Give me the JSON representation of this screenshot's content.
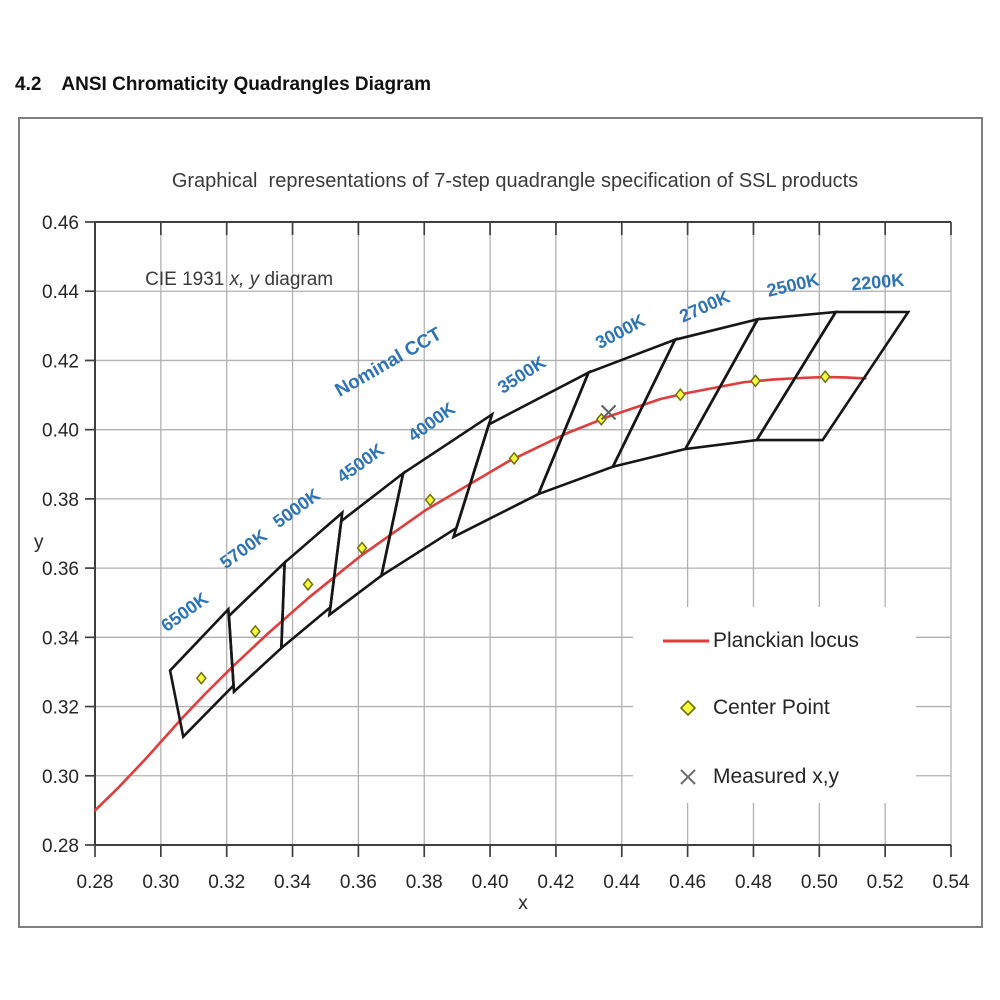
{
  "page": {
    "heading_number": "4.2",
    "heading_text": "ANSI Chromaticity Quadrangles Diagram"
  },
  "figure": {
    "title": "Graphical  representations of 7-step quadrangle specification of SSL products",
    "cie_prefix": "CIE 1931 ",
    "cie_italic": "x, y",
    "cie_suffix": " diagram"
  },
  "chart_data": {
    "type": "line",
    "title": "Graphical  representations of 7-step quadrangle specification of SSL products",
    "annotation": "CIE 1931 x, y diagram",
    "xlabel": "x",
    "ylabel": "y",
    "xlim": [
      0.28,
      0.54
    ],
    "ylim": [
      0.28,
      0.46
    ],
    "grid": true,
    "xtick_labels": [
      "0.28",
      "0.30",
      "0.32",
      "0.34",
      "0.36",
      "0.38",
      "0.40",
      "0.42",
      "0.44",
      "0.46",
      "0.48",
      "0.50",
      "0.52",
      "0.54"
    ],
    "ytick_labels": [
      "0.46",
      "0.44",
      "0.42",
      "0.40",
      "0.38",
      "0.36",
      "0.34",
      "0.32",
      "0.30",
      "0.28"
    ],
    "colors": {
      "grid": "#b0b0b0",
      "axis": "#3f3f3f",
      "tick_text": "#262626",
      "quadrangle": "#161616",
      "locus": "#e23b3b",
      "cct_text": "#2e74b5",
      "center_fill": "#f7fb3c",
      "center_stroke": "#6f7008",
      "measured": "#616161"
    },
    "nominal_cct_label": {
      "text": "Nominal CCT",
      "x": 0.37,
      "y": 0.418,
      "angle": -30
    },
    "quadrangles": [
      {
        "cct": "6500K",
        "label_x": 0.3083,
        "label_y": 0.3459,
        "label_angle": -36,
        "vertices": [
          [
            0.3028,
            0.3304
          ],
          [
            0.3205,
            0.3481
          ],
          [
            0.3221,
            0.3261
          ],
          [
            0.3068,
            0.3113
          ]
        ]
      },
      {
        "cct": "5700K",
        "label_x": 0.3262,
        "label_y": 0.3641,
        "label_angle": -36,
        "vertices": [
          [
            0.3207,
            0.3462
          ],
          [
            0.3376,
            0.3616
          ],
          [
            0.3366,
            0.3369
          ],
          [
            0.3222,
            0.3243
          ]
        ]
      },
      {
        "cct": "5000K",
        "label_x": 0.3423,
        "label_y": 0.3759,
        "label_angle": -36,
        "vertices": [
          [
            0.3376,
            0.3616
          ],
          [
            0.3551,
            0.376
          ],
          [
            0.3515,
            0.3487
          ],
          [
            0.3366,
            0.3369
          ]
        ]
      },
      {
        "cct": "4500K",
        "label_x": 0.3617,
        "label_y": 0.3889,
        "label_angle": -36,
        "vertices": [
          [
            0.3548,
            0.3736
          ],
          [
            0.3736,
            0.3874
          ],
          [
            0.367,
            0.3578
          ],
          [
            0.3512,
            0.3465
          ]
        ]
      },
      {
        "cct": "4000K",
        "label_x": 0.3833,
        "label_y": 0.4008,
        "label_angle": -36,
        "vertices": [
          [
            0.3736,
            0.3874
          ],
          [
            0.4006,
            0.4044
          ],
          [
            0.3898,
            0.3716
          ],
          [
            0.367,
            0.3578
          ]
        ]
      },
      {
        "cct": "3500K",
        "label_x": 0.4106,
        "label_y": 0.4144,
        "label_angle": -33,
        "vertices": [
          [
            0.3996,
            0.4015
          ],
          [
            0.4299,
            0.4165
          ],
          [
            0.4147,
            0.3814
          ],
          [
            0.3889,
            0.369
          ]
        ]
      },
      {
        "cct": "3000K",
        "label_x": 0.4404,
        "label_y": 0.4268,
        "label_angle": -28,
        "vertices": [
          [
            0.4299,
            0.4165
          ],
          [
            0.4562,
            0.426
          ],
          [
            0.4373,
            0.3893
          ],
          [
            0.4147,
            0.3814
          ]
        ]
      },
      {
        "cct": "2700K",
        "label_x": 0.4659,
        "label_y": 0.434,
        "label_angle": -24,
        "vertices": [
          [
            0.4562,
            0.426
          ],
          [
            0.4813,
            0.4319
          ],
          [
            0.4593,
            0.3944
          ],
          [
            0.4373,
            0.3893
          ]
        ]
      },
      {
        "cct": "2500K",
        "label_x": 0.4924,
        "label_y": 0.4401,
        "label_angle": -13,
        "vertices": [
          [
            0.4813,
            0.4319
          ],
          [
            0.505,
            0.434
          ],
          [
            0.481,
            0.397
          ],
          [
            0.4593,
            0.3944
          ]
        ]
      },
      {
        "cct": "2200K",
        "label_x": 0.5179,
        "label_y": 0.4409,
        "label_angle": -5,
        "vertices": [
          [
            0.505,
            0.434
          ],
          [
            0.527,
            0.434
          ],
          [
            0.501,
            0.397
          ],
          [
            0.481,
            0.397
          ]
        ]
      }
    ],
    "center_points": [
      {
        "cct": "6500K",
        "x": 0.3123,
        "y": 0.3282
      },
      {
        "cct": "5700K",
        "x": 0.3287,
        "y": 0.3417
      },
      {
        "cct": "5000K",
        "x": 0.3447,
        "y": 0.3553
      },
      {
        "cct": "4500K",
        "x": 0.3611,
        "y": 0.3658
      },
      {
        "cct": "4000K",
        "x": 0.3818,
        "y": 0.3797
      },
      {
        "cct": "3500K",
        "x": 0.4073,
        "y": 0.3917
      },
      {
        "cct": "3000K",
        "x": 0.4338,
        "y": 0.403
      },
      {
        "cct": "2700K",
        "x": 0.4578,
        "y": 0.4101
      },
      {
        "cct": "2500K",
        "x": 0.4806,
        "y": 0.4141
      },
      {
        "cct": "2200K",
        "x": 0.5018,
        "y": 0.4153
      }
    ],
    "measured_points": [
      {
        "x": 0.436,
        "y": 0.405
      }
    ],
    "planckian_locus": [
      [
        0.28,
        0.29
      ],
      [
        0.287,
        0.2965
      ],
      [
        0.295,
        0.3045
      ],
      [
        0.3064,
        0.3166
      ],
      [
        0.3135,
        0.3237
      ],
      [
        0.3221,
        0.3318
      ],
      [
        0.3324,
        0.341
      ],
      [
        0.3451,
        0.3516
      ],
      [
        0.3608,
        0.3636
      ],
      [
        0.3805,
        0.3768
      ],
      [
        0.4053,
        0.3907
      ],
      [
        0.4234,
        0.399
      ],
      [
        0.4369,
        0.4041
      ],
      [
        0.4519,
        0.4089
      ],
      [
        0.4599,
        0.4106
      ],
      [
        0.477,
        0.4137
      ],
      [
        0.4862,
        0.4145
      ],
      [
        0.4958,
        0.415
      ],
      [
        0.5018,
        0.4152
      ],
      [
        0.508,
        0.4151
      ],
      [
        0.514,
        0.4148
      ]
    ],
    "legend": {
      "position": "inside lower right",
      "items": [
        {
          "marker": "line",
          "label": "Planckian locus",
          "color": "#e23b3b"
        },
        {
          "marker": "diamond",
          "label": "Center Point",
          "fill": "#f7fb3c",
          "stroke": "#70700a"
        },
        {
          "marker": "cross",
          "label": "Measured x,y",
          "color": "#6e6e6e"
        }
      ]
    }
  }
}
